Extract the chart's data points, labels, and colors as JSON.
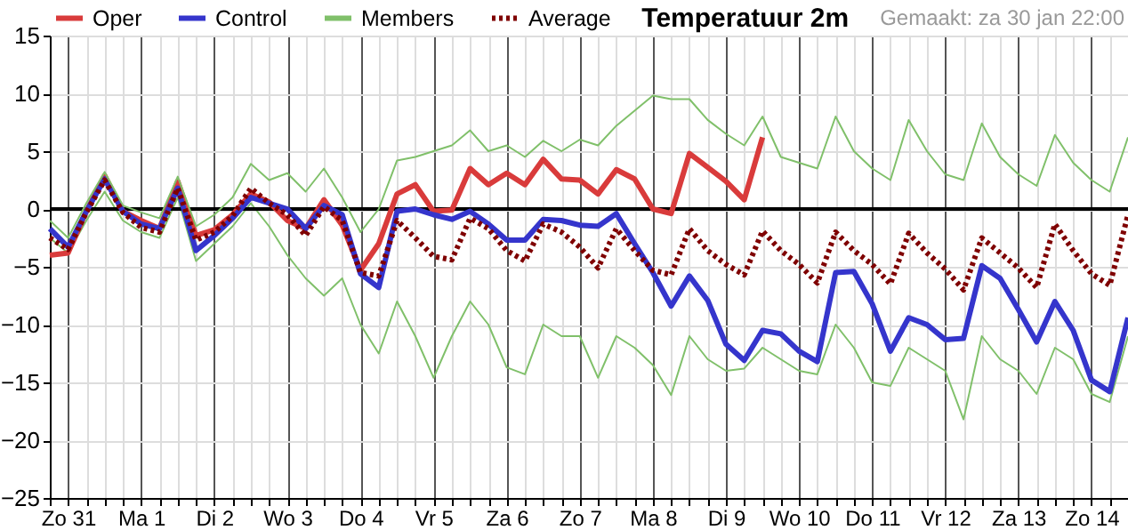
{
  "chart_data": {
    "type": "line",
    "title": "Temperatuur 2m",
    "annotations": [
      "Gemaakt: za 30 jan 22:00"
    ],
    "categories": [
      null,
      "Zo 31",
      null,
      null,
      null,
      "Ma 1",
      null,
      null,
      null,
      "Di 2",
      null,
      null,
      null,
      "Wo 3",
      null,
      null,
      null,
      "Do 4",
      null,
      null,
      null,
      "Vr 5",
      null,
      null,
      null,
      "Za 6",
      null,
      null,
      null,
      "Zo 7",
      null,
      null,
      null,
      "Ma 8",
      null,
      null,
      null,
      "Di 9",
      null,
      null,
      null,
      "Wo 10",
      null,
      null,
      null,
      "Do 11",
      null,
      null,
      null,
      "Vr 12",
      null,
      null,
      null,
      "Za 13",
      null,
      null,
      null,
      "Zo 14",
      null,
      null
    ],
    "ylim": [
      -25,
      15
    ],
    "yticks": [
      -25,
      -20,
      -15,
      -10,
      -5,
      0,
      5,
      10,
      15
    ],
    "grid": true,
    "legend": "top left",
    "marker": "none",
    "ref_lines": [
      {
        "axis": "y",
        "value": 0,
        "color": "#000000"
      }
    ],
    "series": [
      {
        "name": "Oper",
        "color": "#d93b3b",
        "line_style": "solid",
        "values": [
          -4.0,
          -3.8,
          -0.2,
          2.9,
          -0.2,
          -1.0,
          -1.7,
          2.4,
          -2.3,
          -1.8,
          -0.5,
          1.3,
          0.6,
          -1.0,
          -1.7,
          0.8,
          -1.4,
          -5.3,
          -3.0,
          1.3,
          2.1,
          -0.2,
          -0.1,
          3.5,
          2.1,
          3.1,
          2.1,
          4.3,
          2.6,
          2.5,
          1.3,
          3.4,
          2.6,
          0.0,
          -0.4,
          4.8,
          3.6,
          2.4,
          0.8,
          6.2,
          null,
          null,
          null,
          null,
          null,
          null,
          null,
          null,
          null,
          null,
          null,
          null,
          null,
          null,
          null,
          null,
          null,
          null,
          null,
          null
        ]
      },
      {
        "name": "Control",
        "color": "#3535cc",
        "line_style": "solid",
        "values": [
          -1.7,
          -3.3,
          -0.2,
          2.6,
          -0.2,
          -1.3,
          -1.7,
          1.8,
          -3.6,
          -2.3,
          -0.8,
          1.0,
          0.5,
          0.0,
          -1.7,
          0.3,
          -0.5,
          -5.6,
          -6.8,
          -0.2,
          0.0,
          -0.5,
          -0.9,
          -0.2,
          -1.3,
          -2.7,
          -2.7,
          -0.9,
          -1.0,
          -1.4,
          -1.5,
          -0.4,
          -3.0,
          -5.5,
          -8.4,
          -5.8,
          -7.9,
          -11.7,
          -13.1,
          -10.5,
          -10.8,
          -12.3,
          -13.2,
          -5.5,
          -5.4,
          -8.2,
          -12.3,
          -9.4,
          -10.0,
          -11.3,
          -11.2,
          -4.9,
          -6.0,
          -8.7,
          -11.5,
          -8.0,
          -10.5,
          -14.8,
          -15.8,
          -9.4
        ]
      },
      {
        "name": "Members",
        "color": "#80c06a",
        "line_style": "solid",
        "values": [
          -1.0,
          -2.5,
          0.5,
          3.2,
          0.3,
          -0.3,
          -0.8,
          2.8,
          -1.5,
          -0.5,
          1.0,
          3.9,
          2.5,
          3.1,
          1.5,
          3.5,
          1.0,
          -2.0,
          0.0,
          4.2,
          4.5,
          5.0,
          5.5,
          6.8,
          5.0,
          5.5,
          4.5,
          5.9,
          5.0,
          6.0,
          5.5,
          7.2,
          8.5,
          9.8,
          9.5,
          9.5,
          7.7,
          6.5,
          5.5,
          8.0,
          4.5,
          4.0,
          3.5,
          8.0,
          5.0,
          3.5,
          2.5,
          7.7,
          5.0,
          3.0,
          2.5,
          7.4,
          4.5,
          3.0,
          2.0,
          6.4,
          4.0,
          2.5,
          1.5,
          6.2
        ]
      },
      {
        "color": "#80c06a",
        "line_style": "solid",
        "values": [
          -2.5,
          -3.8,
          -1.0,
          1.5,
          -1.0,
          -2.0,
          -2.5,
          1.0,
          -4.5,
          -3.0,
          -1.5,
          0.5,
          -1.5,
          -4.0,
          -6.0,
          -7.5,
          -6.0,
          -10.0,
          -12.5,
          -8.0,
          -11.0,
          -14.6,
          -11.0,
          -8.0,
          -10.0,
          -13.7,
          -14.3,
          -10.0,
          -11.0,
          -11.0,
          -14.6,
          -11.0,
          -12.0,
          -13.5,
          -16.1,
          -11.0,
          -13.0,
          -14.0,
          -13.8,
          -12.0,
          -13.0,
          -14.0,
          -14.3,
          -10.0,
          -12.0,
          -15.0,
          -15.3,
          -12.0,
          -13.0,
          -14.0,
          -18.2,
          -11.0,
          -13.0,
          -14.0,
          -16.0,
          -12.0,
          -13.0,
          -16.0,
          -16.7,
          -11.0
        ]
      },
      {
        "name": "Average",
        "color": "#7f0000",
        "line_style": "dotted",
        "values": [
          -2.5,
          -3.5,
          -0.3,
          2.5,
          -0.3,
          -1.6,
          -2.0,
          1.8,
          -2.7,
          -2.0,
          -0.6,
          1.8,
          0.5,
          -0.5,
          -2.3,
          0.2,
          -1.0,
          -5.5,
          -5.8,
          -1.0,
          -2.5,
          -4.1,
          -4.4,
          -0.8,
          -1.7,
          -3.6,
          -4.5,
          -1.3,
          -2.0,
          -3.3,
          -5.1,
          -1.7,
          -3.6,
          -5.3,
          -5.7,
          -1.7,
          -3.6,
          -4.8,
          -5.7,
          -1.9,
          -3.6,
          -4.8,
          -6.4,
          -2.0,
          -3.6,
          -4.8,
          -6.5,
          -2.1,
          -3.8,
          -5.2,
          -7.0,
          -2.5,
          -3.8,
          -5.1,
          -6.8,
          -1.3,
          -3.6,
          -5.6,
          -6.6,
          -0.5
        ]
      }
    ]
  }
}
